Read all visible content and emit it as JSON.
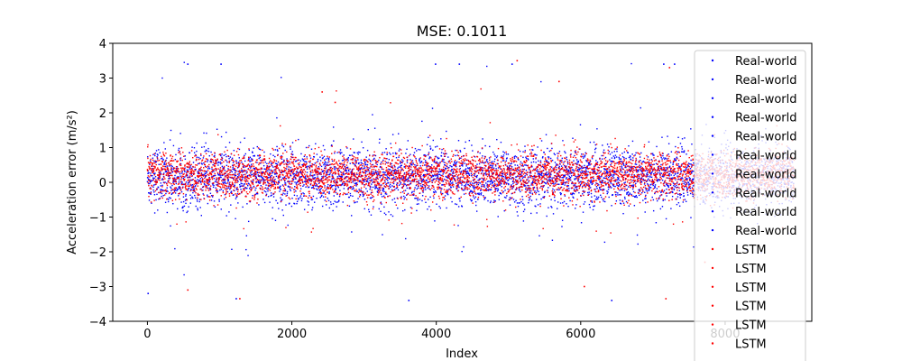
{
  "chart_data": {
    "type": "scatter",
    "title": "MSE: 0.1011",
    "xlabel": "Index",
    "ylabel": "Acceleration error (m/s²)",
    "xlim": [
      -480,
      9200
    ],
    "ylim": [
      -4,
      4
    ],
    "xticks": [
      0,
      2000,
      4000,
      6000,
      8000
    ],
    "xtick_labels": [
      "0",
      "2000",
      "4000",
      "6000",
      "8000"
    ],
    "yticks": [
      -4,
      -3,
      -2,
      -1,
      0,
      1,
      2,
      3,
      4
    ],
    "ytick_labels": [
      "−4",
      "−3",
      "−2",
      "−1",
      "0",
      "1",
      "2",
      "3",
      "4"
    ],
    "grid": false,
    "legend_position": "top-right",
    "colors": {
      "real": "#0000ff",
      "lstm": "#ff0000"
    },
    "series": [
      {
        "name": "Real-world",
        "color": "#0000ff",
        "n_points": 8960,
        "mean": 0.15,
        "sd": 0.42,
        "outliers": [
          [
            10,
            -3.2
          ],
          [
            560,
            3.4
          ],
          [
            1020,
            3.4
          ],
          [
            1230,
            -3.35
          ],
          [
            3620,
            -3.4
          ],
          [
            3990,
            3.4
          ],
          [
            4320,
            3.4
          ],
          [
            5050,
            3.4
          ],
          [
            6430,
            -3.4
          ],
          [
            7150,
            3.4
          ],
          [
            7300,
            3.4
          ]
        ]
      },
      {
        "name": "Real-world",
        "color": "#0000ff"
      },
      {
        "name": "Real-world",
        "color": "#0000ff"
      },
      {
        "name": "Real-world",
        "color": "#0000ff"
      },
      {
        "name": "Real-world",
        "color": "#0000ff"
      },
      {
        "name": "Real-world",
        "color": "#0000ff"
      },
      {
        "name": "Real-world",
        "color": "#0000ff"
      },
      {
        "name": "Real-world",
        "color": "#0000ff"
      },
      {
        "name": "Real-world",
        "color": "#0000ff"
      },
      {
        "name": "Real-world",
        "color": "#0000ff"
      },
      {
        "name": "LSTM",
        "color": "#ff0000",
        "n_points": 8960,
        "mean": 0.2,
        "sd": 0.32,
        "outliers": [
          [
            560,
            -3.1
          ],
          [
            1280,
            -3.35
          ],
          [
            2420,
            2.6
          ],
          [
            2600,
            2.3
          ],
          [
            5120,
            3.5
          ],
          [
            5700,
            2.9
          ],
          [
            6050,
            -3.0
          ],
          [
            7180,
            -3.35
          ],
          [
            7230,
            3.3
          ],
          [
            7720,
            -2.3
          ]
        ]
      },
      {
        "name": "LSTM",
        "color": "#ff0000"
      },
      {
        "name": "LSTM",
        "color": "#ff0000"
      },
      {
        "name": "LSTM",
        "color": "#ff0000"
      },
      {
        "name": "LSTM",
        "color": "#ff0000"
      },
      {
        "name": "LSTM",
        "color": "#ff0000"
      },
      {
        "name": "LSTM",
        "color": "#ff0000"
      }
    ]
  }
}
